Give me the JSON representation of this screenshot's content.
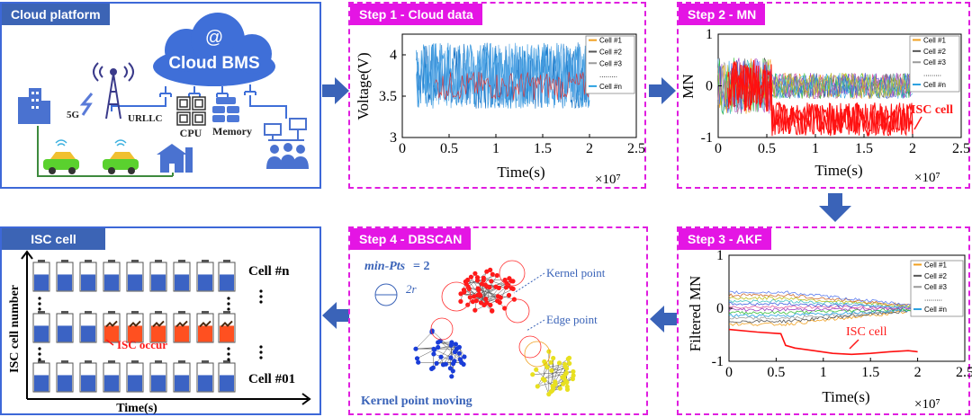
{
  "colors": {
    "blue": "#3d68d8",
    "tag_blue": "#3c64b5",
    "pink": "#e01ee0",
    "arrow": "#3a63b8",
    "red": "#ff2020",
    "batt_blue": "#3b63c4"
  },
  "cloud": {
    "title": "Cloud platform",
    "at": "@",
    "cloud_label": "Cloud BMS",
    "g5": "5G",
    "urllc": "URLLC",
    "cpu": "CPU",
    "memory": "Memory"
  },
  "step1": {
    "title": "Step 1 - Cloud data"
  },
  "step2": {
    "title": "Step 2 - MN",
    "isc_label": "ISC cell"
  },
  "step3": {
    "title": "Step 3 - AKF",
    "isc_label": "ISC cell"
  },
  "step4": {
    "title": "Step 4 - DBSCAN",
    "minpts_label": "min-Pts",
    "minpts_eq": " = 2",
    "radius_label": "2r",
    "kernel_label": "Kernel point",
    "edge_label": "Edge point",
    "moving_label": "Kernel point moving"
  },
  "isc": {
    "title": "ISC cell",
    "ylabel": "ISC cell number",
    "xlabel": "Time(s)",
    "top_label": "Cell #n",
    "bottom_label": "Cell #01",
    "occur_label": "ISC occur"
  },
  "legend": {
    "items": [
      "Cell #1",
      "Cell #2",
      "Cell #3",
      ".........",
      "Cell #n"
    ],
    "colors": [
      "#f0a020",
      "#555555",
      "#9a9a9a",
      "#ffffff",
      "#2aa0e0"
    ]
  },
  "chart_data": [
    {
      "type": "line",
      "title": "Step 1 - Cloud data",
      "xlabel": "Time(s)",
      "x_exponent": "×10⁷",
      "ylabel": "Voltage(V)",
      "xlim": [
        0,
        2.5
      ],
      "ylim": [
        3,
        4.25
      ],
      "xticks": [
        "0",
        "0.5",
        "1",
        "1.5",
        "2",
        "2.5"
      ],
      "yticks": [
        "3",
        "3.5",
        "4"
      ],
      "series": [
        {
          "name": "Cell #1"
        },
        {
          "name": "Cell #2"
        },
        {
          "name": "Cell #3"
        },
        {
          "name": "Cell #n"
        }
      ],
      "x_range_data": [
        0.15,
        2.0
      ],
      "voltage_band": [
        3.35,
        4.15
      ]
    },
    {
      "type": "line",
      "title": "Step 2 - MN",
      "xlabel": "Time(s)",
      "x_exponent": "×10⁷",
      "ylabel": "MN",
      "xlim": [
        0,
        2.5
      ],
      "ylim": [
        -1,
        1
      ],
      "xticks": [
        "0",
        "0.5",
        "1",
        "1.5",
        "2",
        "2.5"
      ],
      "yticks": [
        "-1",
        "0",
        "1"
      ],
      "series": [
        {
          "name": "Cell #1"
        },
        {
          "name": "Cell #2"
        },
        {
          "name": "Cell #3"
        },
        {
          "name": "Cell #n"
        }
      ],
      "annotation": "ISC cell"
    },
    {
      "type": "line",
      "title": "Step 3 - AKF",
      "xlabel": "Time(s)",
      "x_exponent": "×10⁷",
      "ylabel": "Filtered MN",
      "xlim": [
        0,
        2.5
      ],
      "ylim": [
        -1,
        1
      ],
      "xticks": [
        "0",
        "0.5",
        "1",
        "1.5",
        "2",
        "2.5"
      ],
      "yticks": [
        "-1",
        "0",
        "1"
      ],
      "series": [
        {
          "name": "Cell #1"
        },
        {
          "name": "Cell #2"
        },
        {
          "name": "Cell #3"
        },
        {
          "name": "Cell #n"
        }
      ],
      "isc_curve": {
        "x": [
          0.0,
          0.3,
          0.55,
          0.6,
          0.7,
          0.9,
          1.1,
          1.3,
          1.5,
          1.7,
          1.9,
          2.0
        ],
        "y": [
          -0.4,
          -0.45,
          -0.48,
          -0.7,
          -0.75,
          -0.8,
          -0.85,
          -0.87,
          -0.85,
          -0.82,
          -0.8,
          -0.82
        ]
      },
      "annotation": "ISC cell"
    }
  ]
}
